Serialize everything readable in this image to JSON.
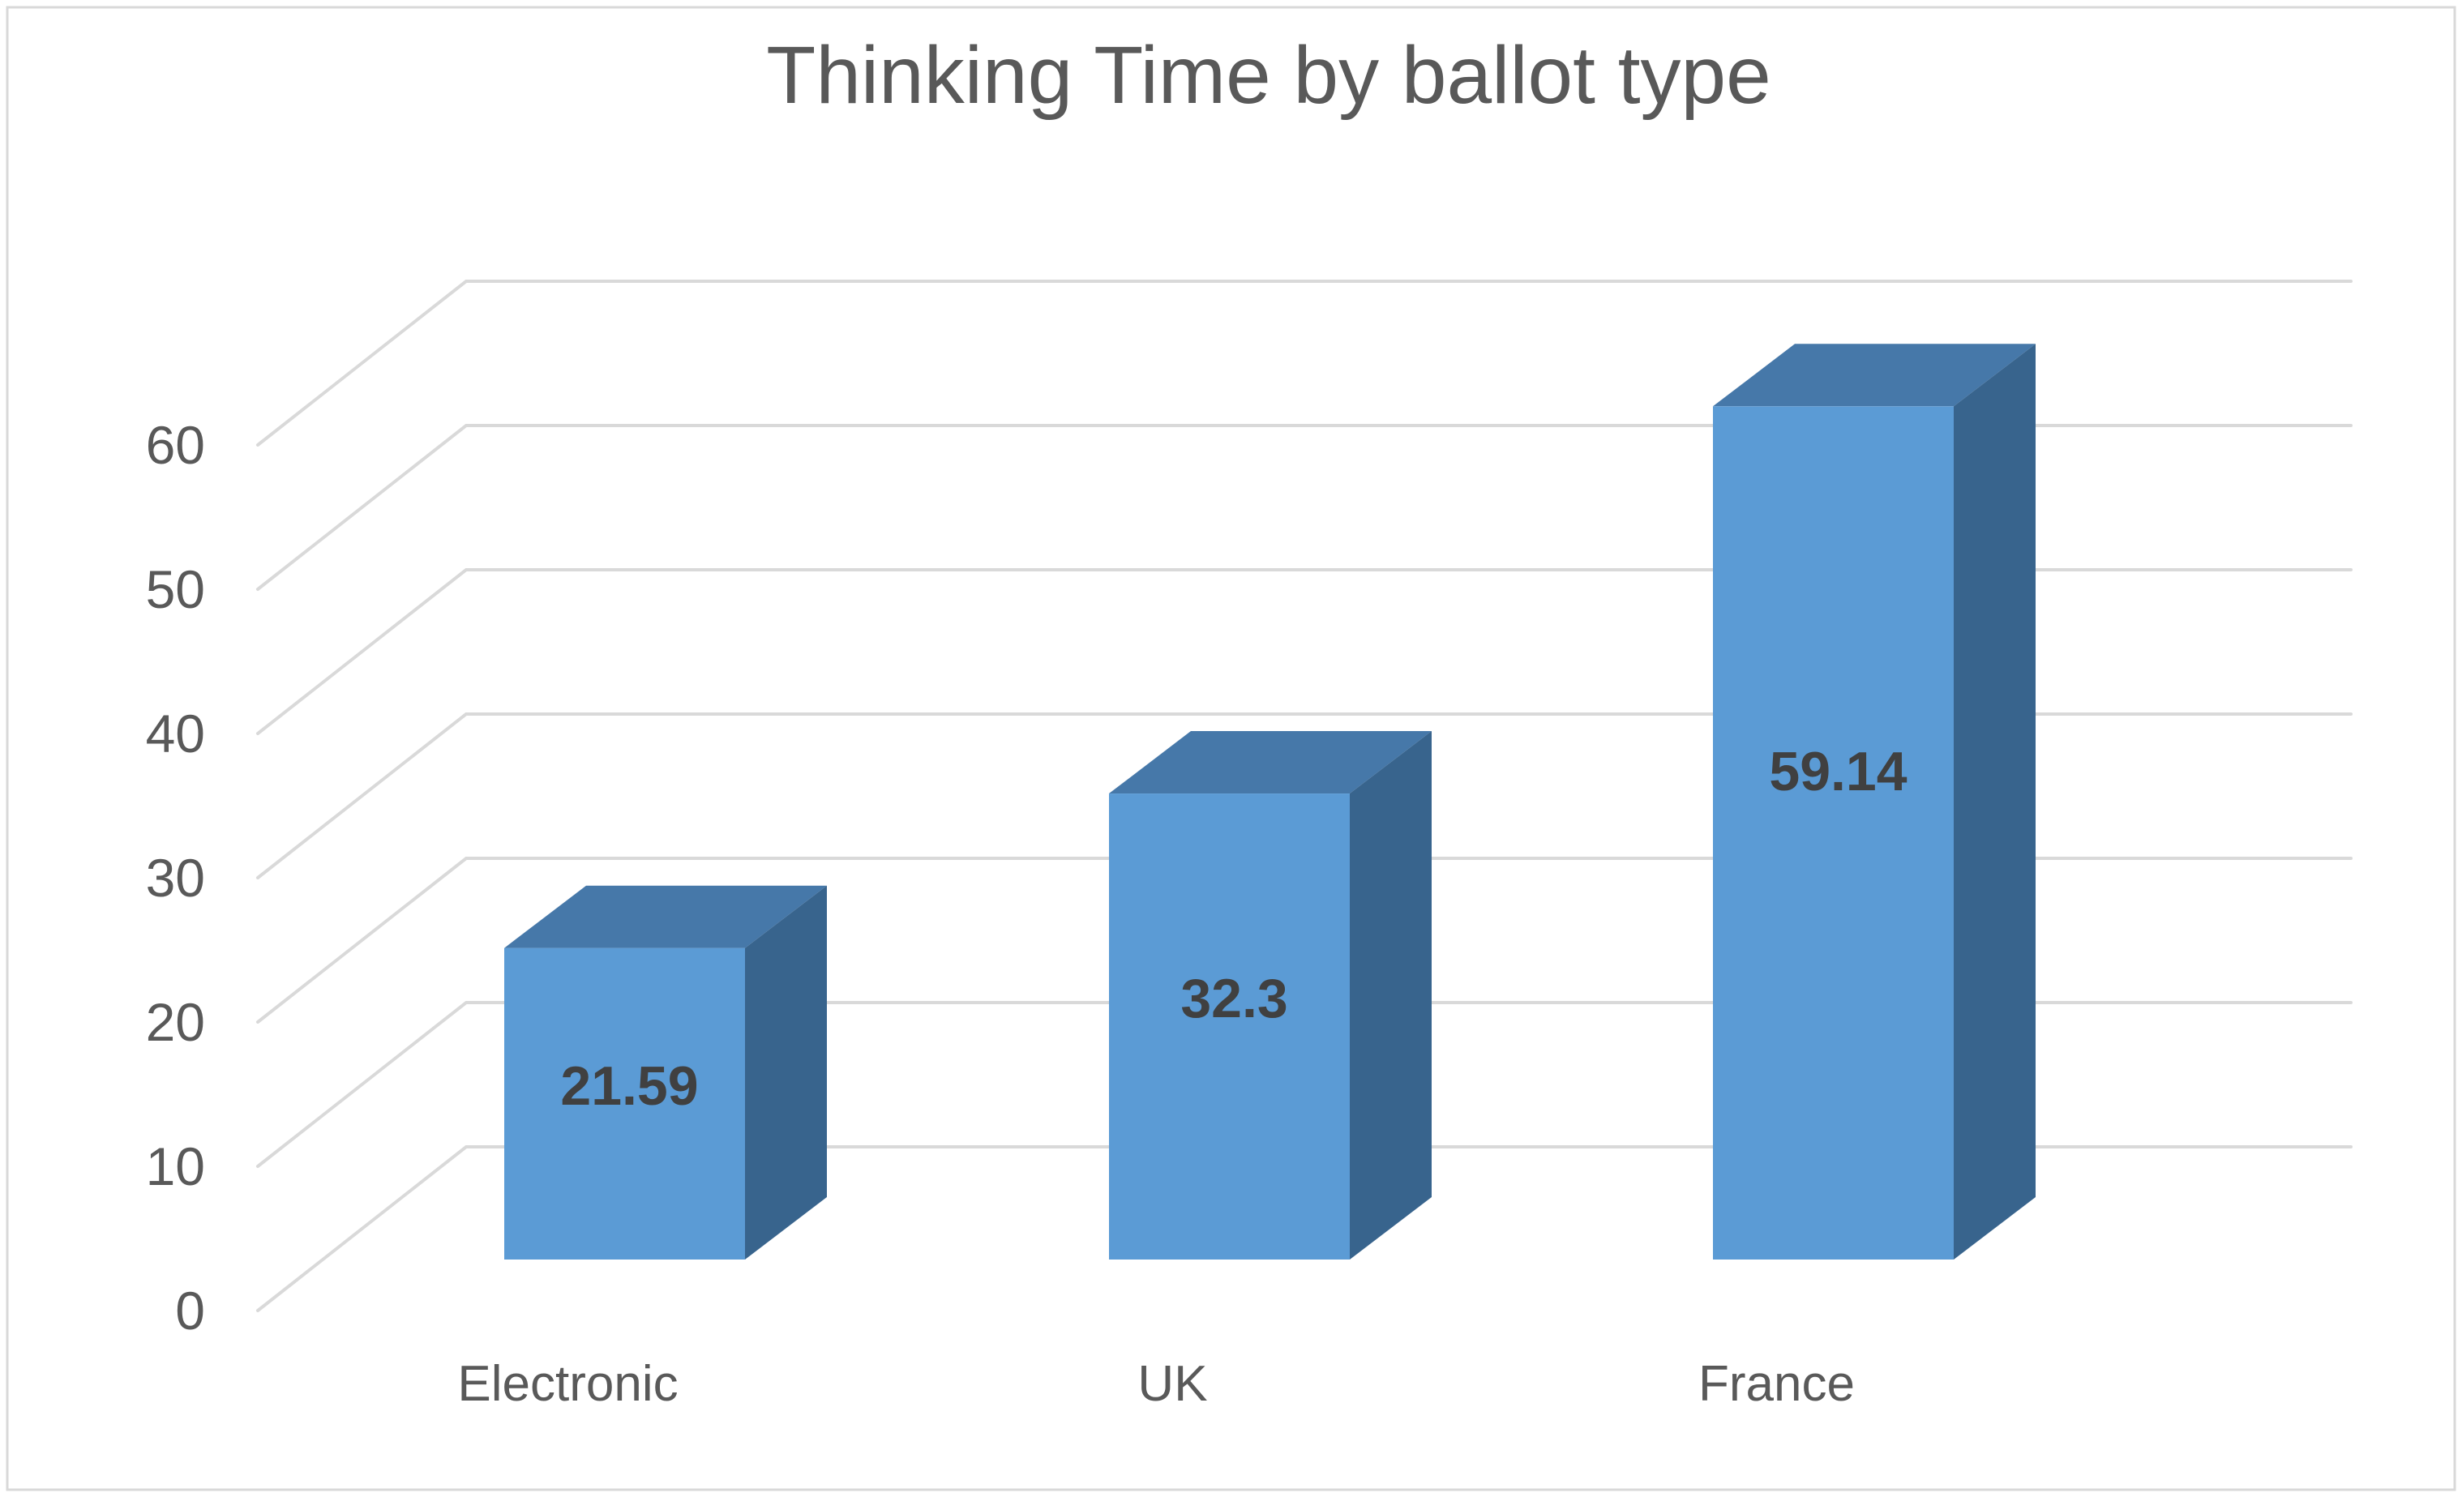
{
  "chart_data": {
    "type": "bar",
    "is_3d": true,
    "title": "Thinking Time by ballot type",
    "categories": [
      "Electronic",
      "UK",
      "France"
    ],
    "values": [
      21.59,
      32.3,
      59.14
    ],
    "data_labels": [
      "21.59",
      "32.3",
      "59.14"
    ],
    "y_ticks": [
      "0",
      "10",
      "20",
      "30",
      "40",
      "50",
      "60"
    ],
    "y_tick_values": [
      0,
      10,
      20,
      30,
      40,
      50,
      60
    ],
    "ylim": [
      0,
      60
    ],
    "xlabel": "",
    "ylabel": "",
    "legend_position": "none",
    "grid": true,
    "colors": {
      "bar_front": "#5B9BD5",
      "bar_top": "#4678A9",
      "bar_side": "#38648D",
      "gridline": "#D9D9D9",
      "axis_text": "#595959",
      "category_text": "#595959",
      "data_label_text": "#404040",
      "title_text": "#595959",
      "border": "#D9D9D9",
      "background": "#FFFFFF"
    }
  }
}
